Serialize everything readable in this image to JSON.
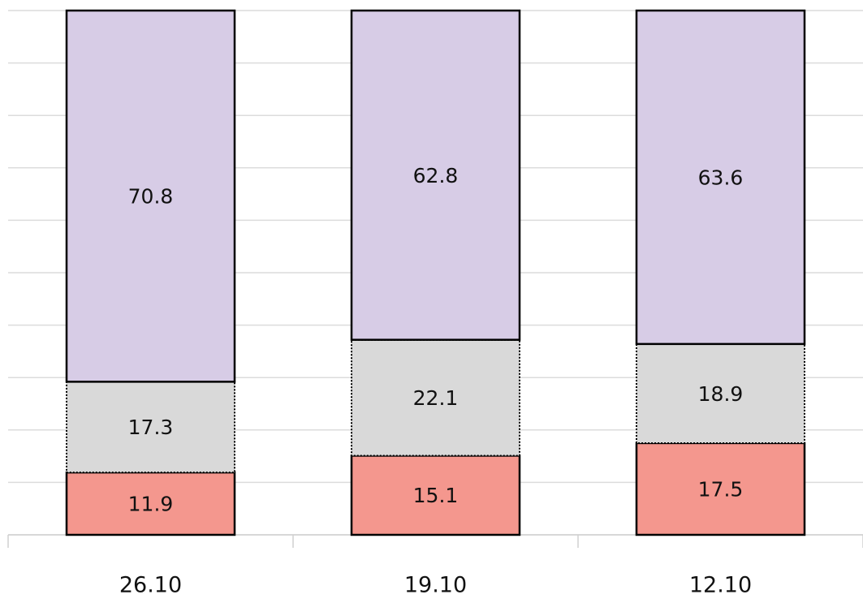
{
  "chart_data": {
    "type": "stacked_bar",
    "categories": [
      "26.10",
      "19.10",
      "12.10"
    ],
    "series": [
      {
        "color": "#f4978e",
        "linestyle": "solid",
        "values": [
          11.9,
          15.1,
          17.5
        ]
      },
      {
        "color": "#d9d9d9",
        "linestyle": "dotted",
        "values": [
          17.3,
          22.1,
          18.9
        ]
      },
      {
        "color": "#d7cce6",
        "linestyle": "solid",
        "values": [
          70.8,
          62.8,
          63.6
        ]
      }
    ],
    "ylim": [
      0,
      100
    ],
    "yticks": [
      0,
      10,
      20,
      30,
      40,
      50,
      60,
      70,
      80,
      90,
      100
    ],
    "grid": true
  }
}
